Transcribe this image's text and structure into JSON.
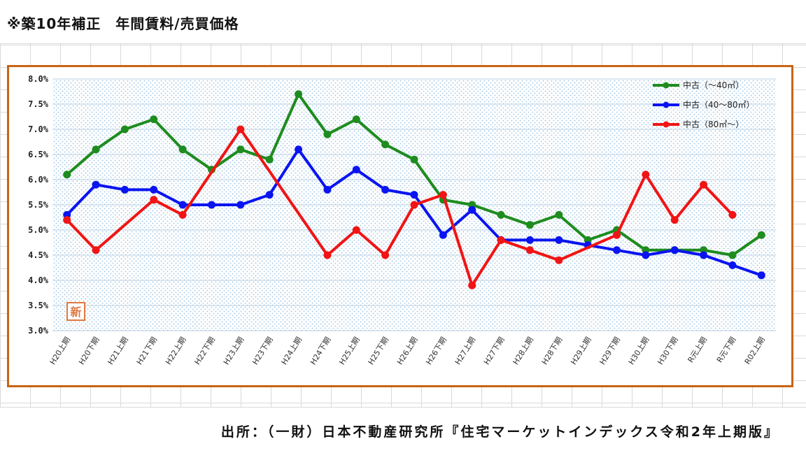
{
  "page": {
    "title": "※築10年補正　年間賃料/売買価格",
    "source": "出所：（一財）日本不動産研究所『住宅マーケットインデックス令和2年上期版』",
    "badge": "新"
  },
  "colors": {
    "frame": "#c86414",
    "green": "#1e8c1e",
    "blue": "#0a14f0",
    "red": "#f01414",
    "badge": "#e07840"
  },
  "chart_data": {
    "type": "line",
    "title": "",
    "xlabel": "",
    "ylabel": "",
    "ylim": [
      3.0,
      8.0
    ],
    "yticks": [
      "3.0%",
      "3.5%",
      "4.0%",
      "4.5%",
      "5.0%",
      "5.5%",
      "6.0%",
      "6.5%",
      "7.0%",
      "7.5%",
      "8.0%"
    ],
    "categories": [
      "H20上期",
      "H20下期",
      "H21上期",
      "H21下期",
      "H22上期",
      "H22下期",
      "H23上期",
      "H23下期",
      "H24上期",
      "H24下期",
      "H25上期",
      "H25下期",
      "H26上期",
      "H26下期",
      "H27上期",
      "H27下期",
      "H28上期",
      "H28下期",
      "H29上期",
      "H29下期",
      "H30上期",
      "H30下期",
      "R元上期",
      "R元下期",
      "R02上期"
    ],
    "grid": "horizontal",
    "legend_position": "top-right",
    "series": [
      {
        "name": "中古（～40㎡）",
        "color": "#1e8c1e",
        "values": [
          6.1,
          6.6,
          7.0,
          7.2,
          6.6,
          6.2,
          6.6,
          6.4,
          7.7,
          6.9,
          7.2,
          6.7,
          6.4,
          5.6,
          5.5,
          5.3,
          5.1,
          5.3,
          4.8,
          5.0,
          4.6,
          4.6,
          4.6,
          4.5,
          4.9
        ]
      },
      {
        "name": "中古（40～80㎡）",
        "color": "#0a14f0",
        "values": [
          5.3,
          5.9,
          5.8,
          5.8,
          5.5,
          5.5,
          5.5,
          5.7,
          6.6,
          5.8,
          6.2,
          5.8,
          5.7,
          4.9,
          5.4,
          4.8,
          4.8,
          4.8,
          4.7,
          4.6,
          4.5,
          4.6,
          4.5,
          4.3,
          4.1
        ]
      },
      {
        "name": "中古（80㎡～）",
        "color": "#f01414",
        "values": [
          5.2,
          4.6,
          null,
          5.6,
          5.3,
          null,
          7.0,
          null,
          null,
          4.5,
          5.0,
          4.5,
          5.5,
          5.7,
          3.9,
          4.8,
          4.6,
          4.4,
          null,
          4.9,
          6.1,
          5.2,
          5.9,
          5.3,
          null
        ]
      }
    ]
  }
}
